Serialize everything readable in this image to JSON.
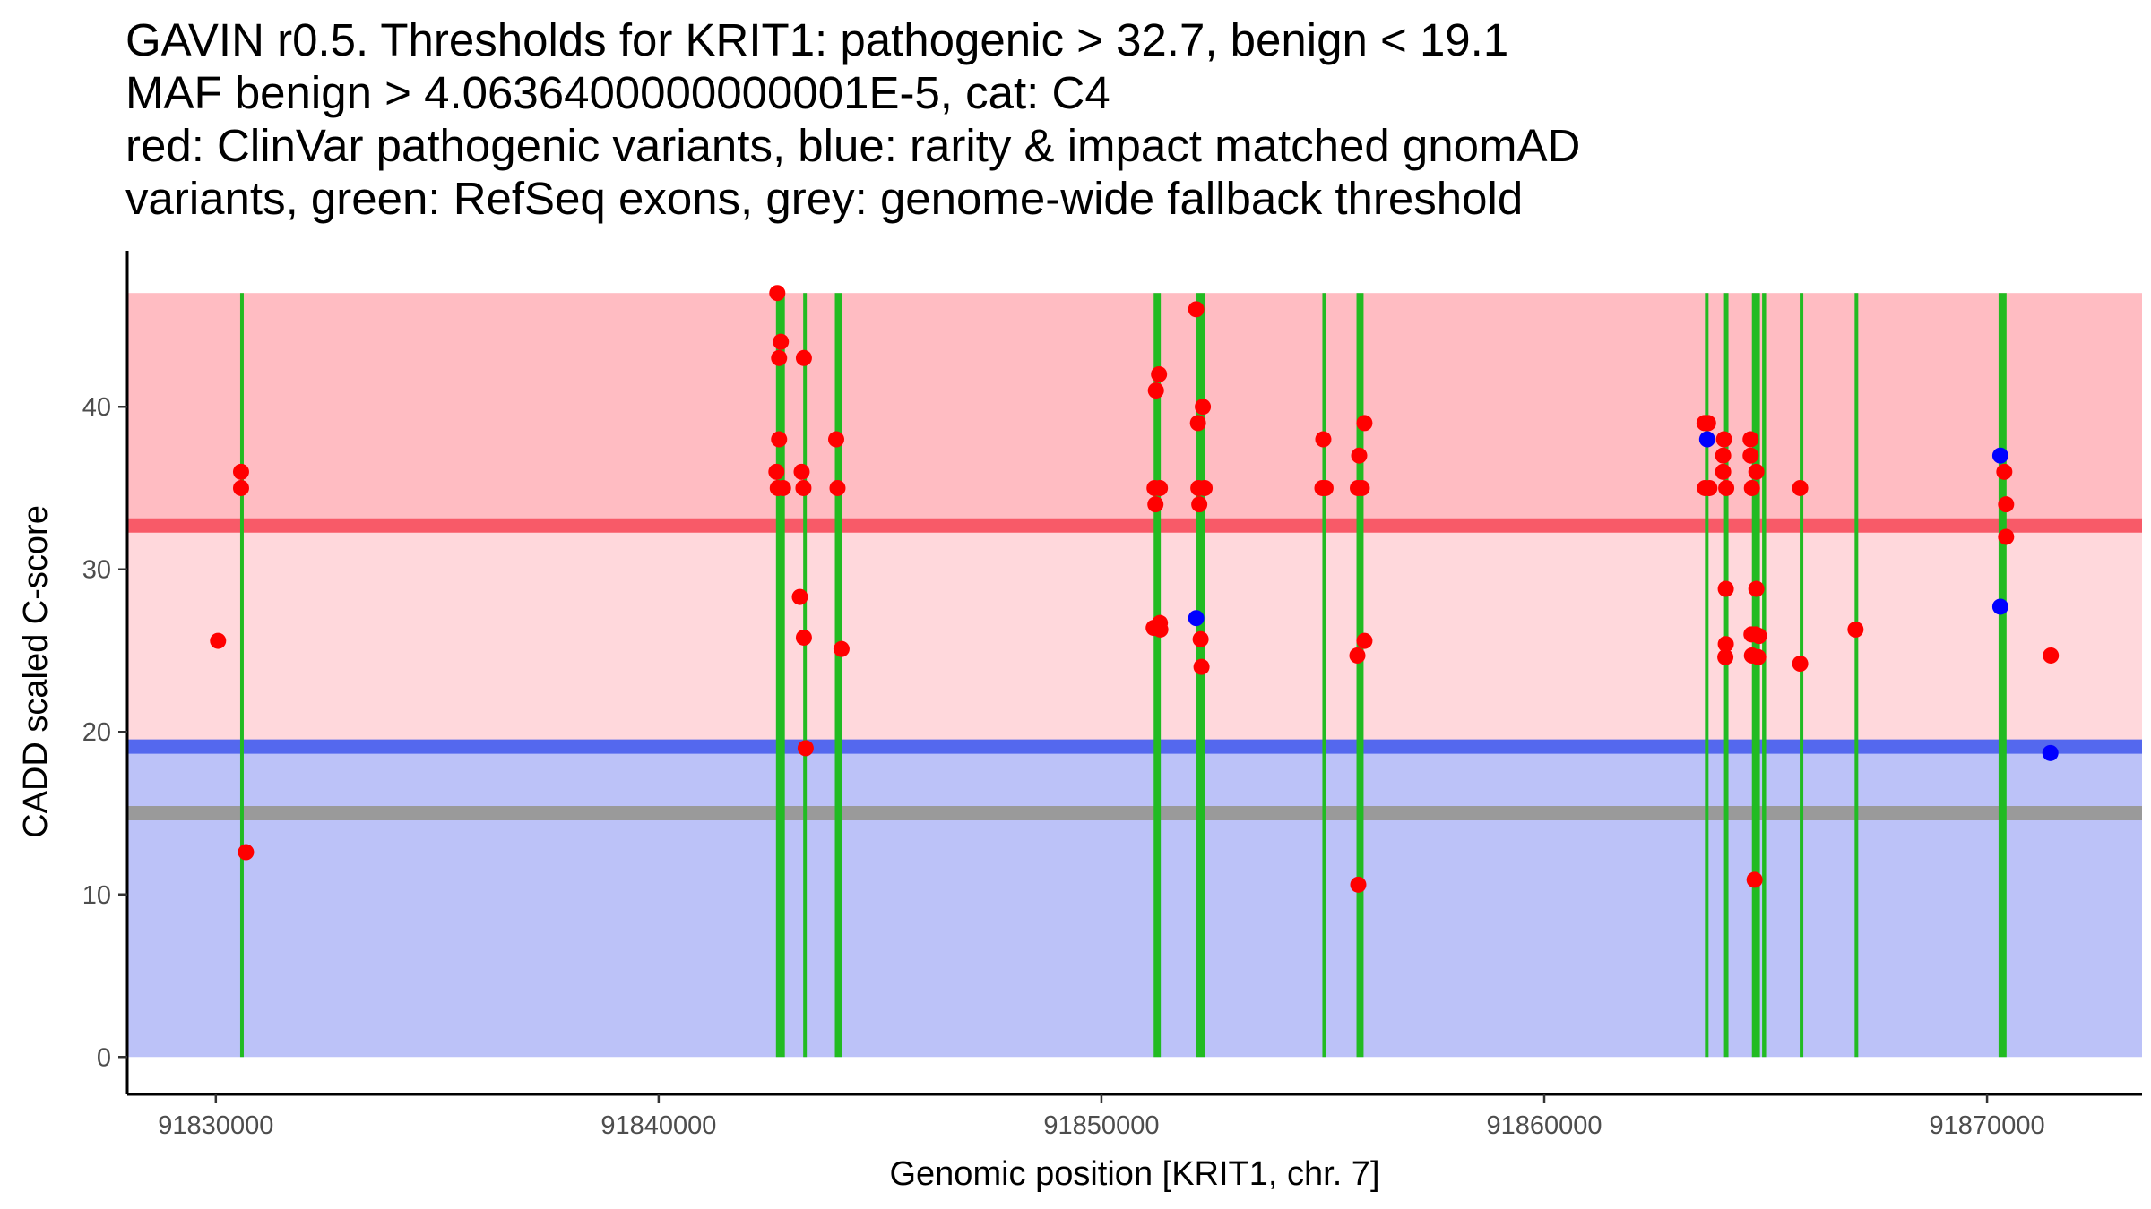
{
  "chart_data": {
    "type": "scatter",
    "title_lines": [
      "GAVIN r0.5. Thresholds for KRIT1: pathogenic > 32.7, benign < 19.1",
      "MAF benign > 4.0636400000000001E-5, cat: C4",
      "red: ClinVar pathogenic variants, blue: rarity & impact matched gnomAD",
      "variants, green: RefSeq exons, grey: genome-wide fallback threshold"
    ],
    "xlabel": "Genomic position [KRIT1, chr. 7]",
    "ylabel": "CADD scaled C-score",
    "xlim": [
      91828000,
      91873500
    ],
    "ylim": [
      -2.3,
      49.6
    ],
    "x_ticks": [
      91830000,
      91840000,
      91850000,
      91860000,
      91870000
    ],
    "x_tick_labels": [
      "91830000",
      "91840000",
      "91850000",
      "91860000",
      "91870000"
    ],
    "y_ticks": [
      0,
      10,
      20,
      30,
      40
    ],
    "y_tick_labels": [
      "0",
      "10",
      "20",
      "30",
      "40"
    ],
    "colors": {
      "pathogenic": "#ff0000",
      "gnomad": "#0000ff",
      "exon": "#22bb22",
      "pathogenic_zone": "#ffbcc2",
      "middle_zone": "#ffd8dc",
      "benign_zone": "#bcc2f8",
      "pathogenic_line": "#f85a68",
      "benign_line": "#5468ee",
      "fallback_line": "#9a9a9a"
    },
    "bands": [
      {
        "name": "pathogenic-zone",
        "y0": 32.7,
        "y1": 47,
        "color_key": "pathogenic_zone"
      },
      {
        "name": "middle-zone",
        "y0": 19.1,
        "y1": 32.7,
        "color_key": "middle_zone"
      },
      {
        "name": "benign-zone",
        "y0": 0,
        "y1": 19.1,
        "color_key": "benign_zone"
      }
    ],
    "threshold_lines": [
      {
        "name": "pathogenic-threshold",
        "y": 32.7,
        "color_key": "pathogenic_line"
      },
      {
        "name": "benign-threshold",
        "y": 19.1,
        "color_key": "benign_line"
      },
      {
        "name": "fallback-threshold",
        "y": 15.0,
        "color_key": "fallback_line"
      }
    ],
    "exons": [
      [
        91830560,
        91830620
      ],
      [
        91842650,
        91842850
      ],
      [
        91843280,
        91843330
      ],
      [
        91843980,
        91844150
      ],
      [
        91851180,
        91851340
      ],
      [
        91852130,
        91852330
      ],
      [
        91855000,
        91855060
      ],
      [
        91855760,
        91855920
      ],
      [
        91863640,
        91863700
      ],
      [
        91864060,
        91864160
      ],
      [
        91864690,
        91864870
      ],
      [
        91864920,
        91865010
      ],
      [
        91865780,
        91865840
      ],
      [
        91867020,
        91867080
      ],
      [
        91870260,
        91870440
      ]
    ],
    "exon_top": 47,
    "series": [
      {
        "name": "ClinVar pathogenic variants",
        "color_key": "pathogenic",
        "points": [
          [
            91830050,
            25.6
          ],
          [
            91830570,
            36.0
          ],
          [
            91830570,
            35.0
          ],
          [
            91830680,
            12.6
          ],
          [
            91842680,
            47.0
          ],
          [
            91842720,
            43.0
          ],
          [
            91842760,
            44.0
          ],
          [
            91842720,
            38.0
          ],
          [
            91842660,
            36.0
          ],
          [
            91842690,
            35.0
          ],
          [
            91842810,
            35.0
          ],
          [
            91843280,
            43.0
          ],
          [
            91843230,
            36.0
          ],
          [
            91843270,
            35.0
          ],
          [
            91843190,
            28.3
          ],
          [
            91843280,
            25.8
          ],
          [
            91843320,
            19.0
          ],
          [
            91844010,
            38.0
          ],
          [
            91844040,
            35.0
          ],
          [
            91844130,
            25.1
          ],
          [
            91851300,
            42.0
          ],
          [
            91851230,
            41.0
          ],
          [
            91851200,
            35.0
          ],
          [
            91851320,
            35.0
          ],
          [
            91851220,
            34.0
          ],
          [
            91851180,
            26.4
          ],
          [
            91851320,
            26.7
          ],
          [
            91851330,
            26.3
          ],
          [
            91852140,
            46.0
          ],
          [
            91852290,
            40.0
          ],
          [
            91852180,
            39.0
          ],
          [
            91852190,
            35.0
          ],
          [
            91852330,
            35.0
          ],
          [
            91852210,
            34.0
          ],
          [
            91852240,
            25.7
          ],
          [
            91852260,
            24.0
          ],
          [
            91855010,
            38.0
          ],
          [
            91854990,
            35.0
          ],
          [
            91855060,
            35.0
          ],
          [
            91855940,
            39.0
          ],
          [
            91855820,
            37.0
          ],
          [
            91855790,
            35.0
          ],
          [
            91855880,
            35.0
          ],
          [
            91855940,
            25.6
          ],
          [
            91855780,
            24.7
          ],
          [
            91855800,
            10.6
          ],
          [
            91863620,
            39.0
          ],
          [
            91863700,
            39.0
          ],
          [
            91863630,
            35.0
          ],
          [
            91863730,
            35.0
          ],
          [
            91864060,
            38.0
          ],
          [
            91864040,
            37.0
          ],
          [
            91864040,
            36.0
          ],
          [
            91864110,
            35.0
          ],
          [
            91864100,
            28.8
          ],
          [
            91864100,
            25.4
          ],
          [
            91864090,
            24.6
          ],
          [
            91864660,
            38.0
          ],
          [
            91864660,
            37.0
          ],
          [
            91864790,
            36.0
          ],
          [
            91864690,
            35.0
          ],
          [
            91864680,
            26.0
          ],
          [
            91864770,
            26.0
          ],
          [
            91864850,
            25.9
          ],
          [
            91864690,
            24.7
          ],
          [
            91864830,
            24.6
          ],
          [
            91864790,
            28.8
          ],
          [
            91864750,
            10.9
          ],
          [
            91865780,
            35.0
          ],
          [
            91865780,
            24.2
          ],
          [
            91867030,
            26.3
          ],
          [
            91870390,
            36.0
          ],
          [
            91870430,
            34.0
          ],
          [
            91870430,
            32.0
          ],
          [
            91871440,
            24.7
          ]
        ]
      },
      {
        "name": "rarity & impact matched gnomAD variants",
        "color_key": "gnomad",
        "points": [
          [
            91852140,
            27.0
          ],
          [
            91863680,
            38.0
          ],
          [
            91870300,
            37.0
          ],
          [
            91870300,
            27.7
          ],
          [
            91871430,
            18.7
          ]
        ]
      }
    ]
  }
}
